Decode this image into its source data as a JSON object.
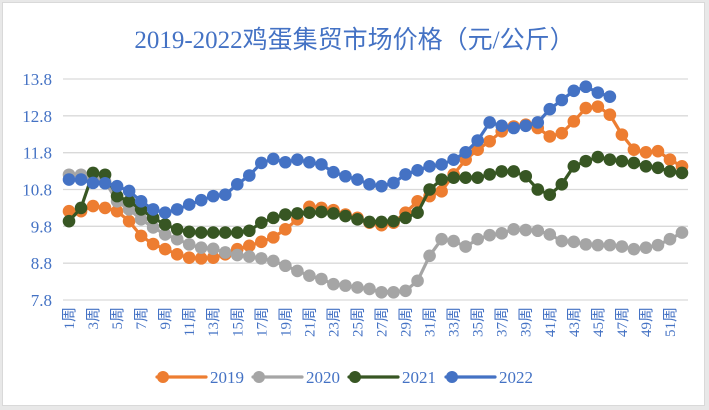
{
  "chart_data": {
    "type": "line",
    "title": "2019-2022鸡蛋集贸市场价格（元/公斤）",
    "xlabel": "",
    "ylabel": "",
    "ylim": [
      7.8,
      13.8
    ],
    "yticks": [
      "13.8",
      "12.8",
      "11.8",
      "10.8",
      "9.8",
      "8.8",
      "7.8"
    ],
    "ytick_values": [
      13.8,
      12.8,
      11.8,
      10.8,
      9.8,
      8.8,
      7.8
    ],
    "grid": true,
    "legend_position": "bottom",
    "categories": [
      "1周",
      "2周",
      "3周",
      "4周",
      "5周",
      "6周",
      "7周",
      "8周",
      "9周",
      "10周",
      "11周",
      "12周",
      "13周",
      "14周",
      "15周",
      "16周",
      "17周",
      "18周",
      "19周",
      "20周",
      "21周",
      "22周",
      "23周",
      "24周",
      "25周",
      "26周",
      "27周",
      "28周",
      "29周",
      "30周",
      "31周",
      "32周",
      "33周",
      "34周",
      "35周",
      "36周",
      "37周",
      "38周",
      "39周",
      "40周",
      "41周",
      "42周",
      "43周",
      "44周",
      "45周",
      "46周",
      "47周",
      "48周",
      "49周",
      "50周",
      "51周",
      "52周"
    ],
    "xtick_labels": [
      "1周",
      "3周",
      "5周",
      "7周",
      "9周",
      "11周",
      "13周",
      "15周",
      "17周",
      "19周",
      "21周",
      "23周",
      "25周",
      "27周",
      "29周",
      "31周",
      "33周",
      "35周",
      "37周",
      "39周",
      "41周",
      "43周",
      "45周",
      "47周",
      "49周",
      "51周"
    ],
    "series": [
      {
        "name": "2019",
        "color": "#ED7D31",
        "values": [
          10.21,
          10.21,
          10.35,
          10.3,
          10.21,
          9.94,
          9.54,
          9.32,
          9.18,
          9.04,
          8.95,
          8.93,
          8.95,
          9.04,
          9.18,
          9.27,
          9.38,
          9.5,
          9.72,
          9.99,
          10.33,
          10.3,
          10.24,
          10.12,
          10.03,
          9.9,
          9.83,
          9.9,
          10.17,
          10.48,
          10.62,
          10.75,
          11.21,
          11.61,
          11.88,
          12.11,
          12.38,
          12.51,
          12.56,
          12.47,
          12.24,
          12.33,
          12.65,
          13.01,
          13.05,
          12.83,
          12.29,
          11.88,
          11.81,
          11.84,
          11.61,
          11.43
        ]
      },
      {
        "name": "2020",
        "color": "#A5A5A5",
        "values": [
          11.2,
          11.2,
          11.12,
          11.02,
          10.48,
          10.26,
          9.99,
          9.77,
          9.58,
          9.45,
          9.31,
          9.22,
          9.19,
          9.09,
          9.02,
          8.98,
          8.93,
          8.86,
          8.73,
          8.59,
          8.46,
          8.37,
          8.23,
          8.19,
          8.14,
          8.1,
          8.01,
          8.01,
          8.05,
          8.32,
          9.0,
          9.45,
          9.4,
          9.25,
          9.45,
          9.56,
          9.61,
          9.72,
          9.7,
          9.68,
          9.58,
          9.4,
          9.38,
          9.31,
          9.29,
          9.29,
          9.25,
          9.18,
          9.22,
          9.29,
          9.45,
          9.63
        ]
      },
      {
        "name": "2021",
        "color": "#375623",
        "values": [
          9.94,
          10.3,
          11.25,
          11.2,
          10.62,
          10.48,
          10.26,
          10.03,
          9.85,
          9.72,
          9.65,
          9.63,
          9.63,
          9.63,
          9.63,
          9.68,
          9.9,
          10.03,
          10.12,
          10.15,
          10.17,
          10.19,
          10.15,
          10.08,
          9.99,
          9.92,
          9.92,
          9.94,
          10.03,
          10.17,
          10.8,
          11.07,
          11.12,
          11.12,
          11.12,
          11.21,
          11.29,
          11.29,
          11.16,
          10.8,
          10.66,
          10.94,
          11.43,
          11.57,
          11.68,
          11.61,
          11.57,
          11.52,
          11.43,
          11.39,
          11.29,
          11.25
        ]
      },
      {
        "name": "2022",
        "color": "#4472C4",
        "values": [
          11.07,
          11.07,
          10.98,
          10.97,
          10.89,
          10.76,
          10.48,
          10.26,
          10.17,
          10.26,
          10.39,
          10.51,
          10.62,
          10.66,
          10.94,
          11.18,
          11.52,
          11.63,
          11.54,
          11.61,
          11.54,
          11.48,
          11.27,
          11.16,
          11.07,
          10.94,
          10.89,
          10.98,
          11.21,
          11.32,
          11.43,
          11.48,
          11.61,
          11.81,
          12.13,
          12.62,
          12.53,
          12.47,
          12.53,
          12.62,
          12.98,
          13.23,
          13.48,
          13.59,
          13.43,
          13.32
        ]
      }
    ]
  },
  "colors": {
    "text": "#4472C4",
    "grid": "#d9d9d9"
  }
}
